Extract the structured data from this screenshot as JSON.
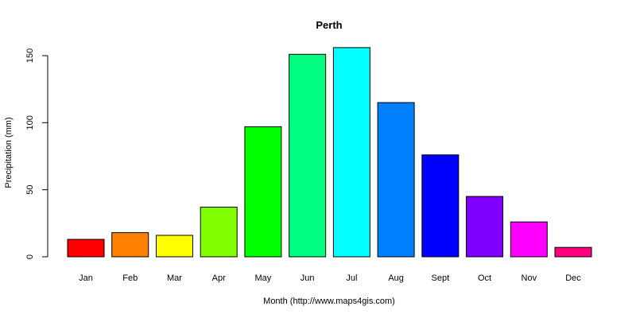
{
  "chart_data": {
    "type": "bar",
    "title": "Perth",
    "xlabel": "Month (http://www.maps4gis.com)",
    "ylabel": "Precipitation (mm)",
    "categories": [
      "Jan",
      "Feb",
      "Mar",
      "Apr",
      "May",
      "Jun",
      "Jul",
      "Aug",
      "Sept",
      "Oct",
      "Nov",
      "Dec"
    ],
    "values": [
      13,
      18,
      16,
      37,
      97,
      151,
      156,
      115,
      76,
      45,
      26,
      7
    ],
    "colors": [
      "#ff0000",
      "#ff8000",
      "#ffff00",
      "#80ff00",
      "#00ff00",
      "#00ff80",
      "#00ffff",
      "#0080ff",
      "#0000ff",
      "#8000ff",
      "#ff00ff",
      "#ff0080"
    ],
    "ylim": [
      0,
      150
    ],
    "yticks": [
      0,
      50,
      100,
      150
    ],
    "grid": false,
    "legend": "none"
  }
}
